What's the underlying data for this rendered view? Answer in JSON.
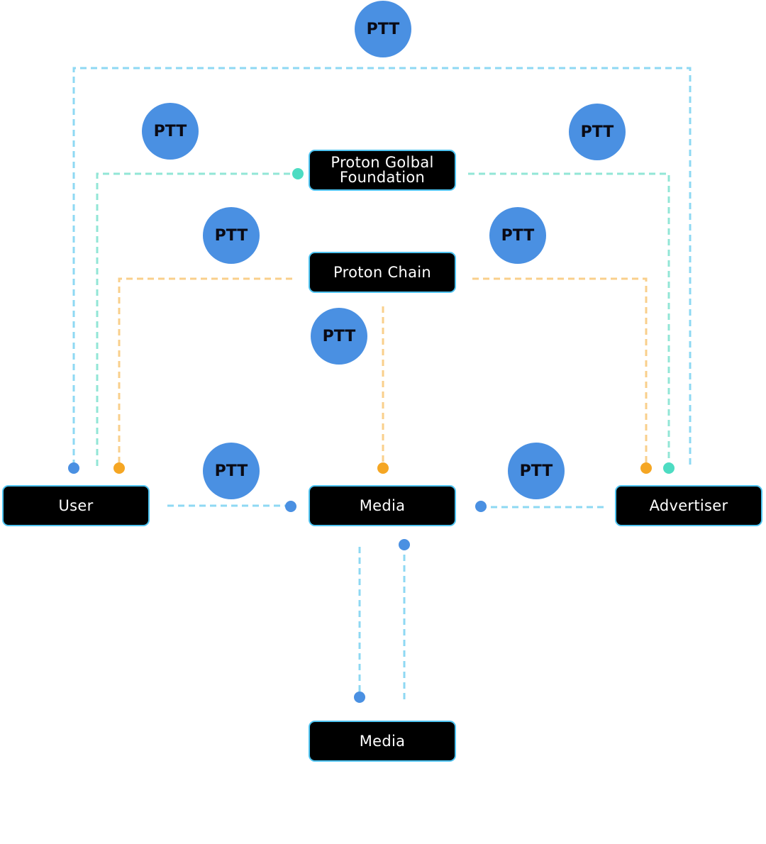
{
  "colors": {
    "light_blue_line": "#8ed8f3",
    "teal_line": "#92e6d6",
    "orange_line": "#f9cf8b",
    "blue_dot": "#4a90e2",
    "teal_dot": "#4ddcc2",
    "orange_dot": "#f5a623",
    "token_fill": "#4a90e2",
    "node_fill": "#000000",
    "node_border": "#4fc3f0"
  },
  "nodes": {
    "foundation_line1": "Proton Golbal",
    "foundation_line2": "Foundation",
    "chain": "Proton Chain",
    "user": "User",
    "media": "Media",
    "advertiser": "Advertiser",
    "media_bottom": "Media"
  },
  "tokens": {
    "top": "PTT",
    "foundation_left": "PTT",
    "foundation_right": "PTT",
    "chain_left": "PTT",
    "chain_right": "PTT",
    "chain_media": "PTT",
    "user_media": "PTT",
    "advertiser_media": "PTT"
  }
}
